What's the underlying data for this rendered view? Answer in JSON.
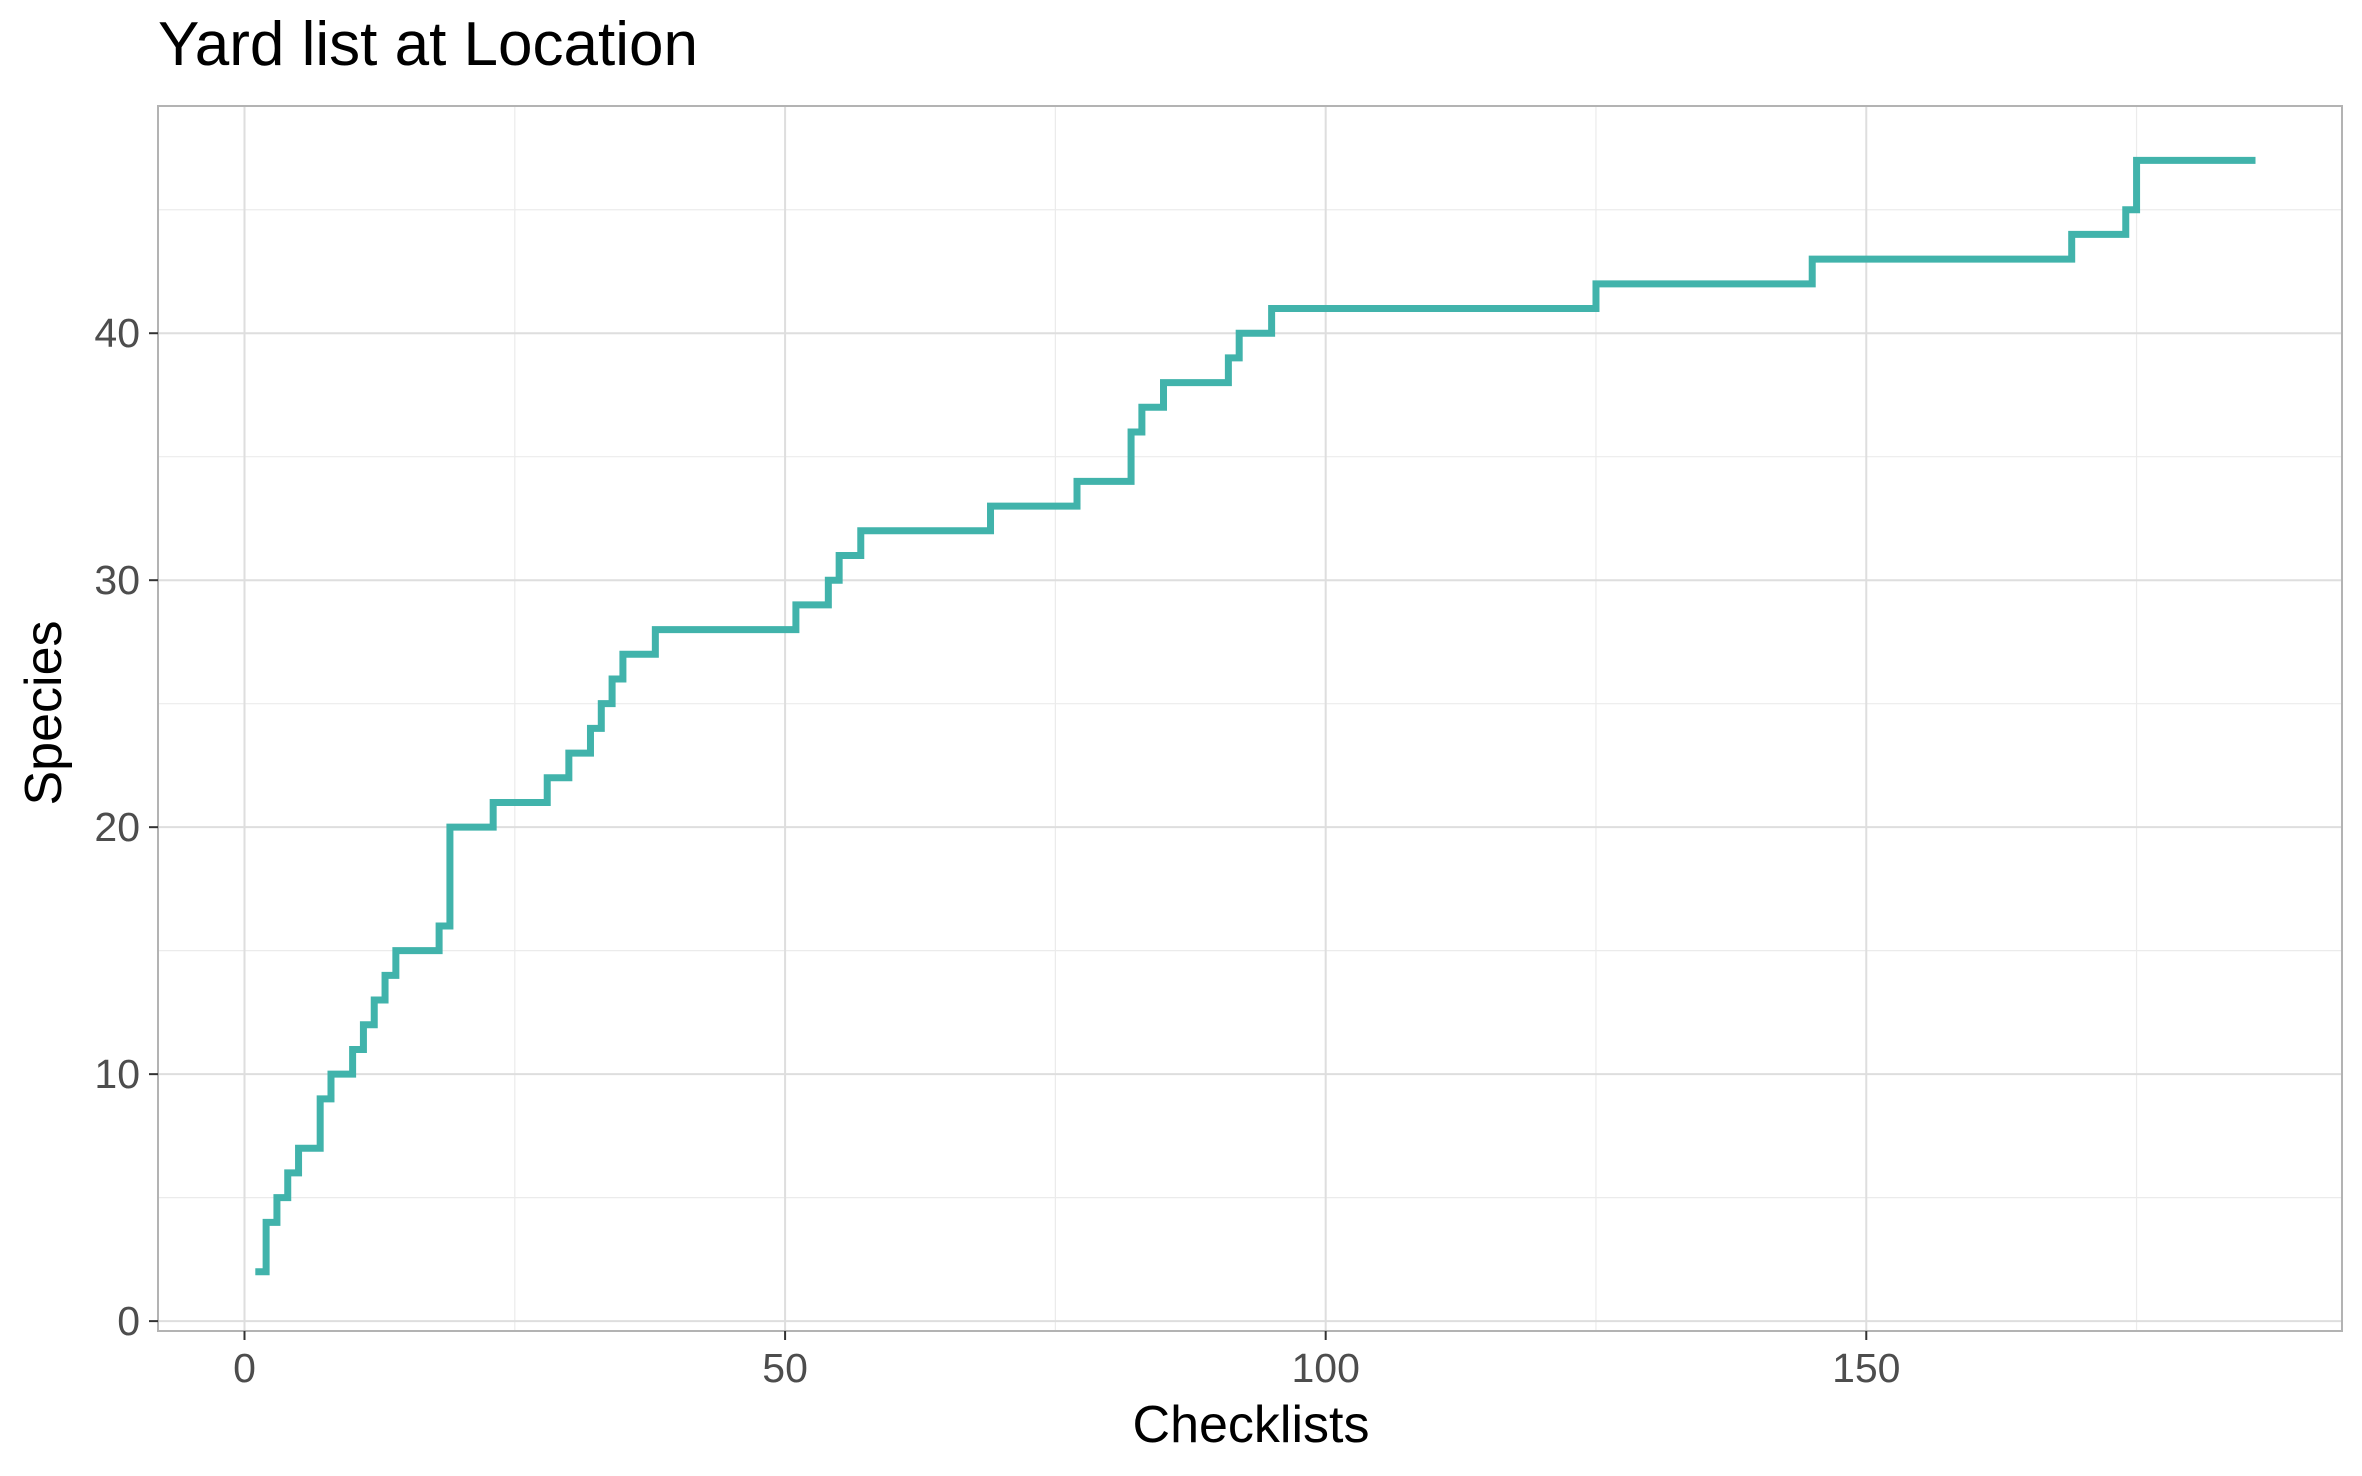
{
  "chart_data": {
    "type": "line",
    "step": true,
    "title": "Yard list at Location",
    "xlabel": "Checklists",
    "ylabel": "Species",
    "xlim": [
      -8,
      194
    ],
    "ylim": [
      -0.4,
      49.2
    ],
    "x_ticks": [
      0,
      50,
      100,
      150
    ],
    "x_tick_labels": [
      "0",
      "50",
      "100",
      "150"
    ],
    "y_ticks": [
      0,
      10,
      20,
      30,
      40
    ],
    "y_tick_labels": [
      "0",
      "10",
      "20",
      "30",
      "40"
    ],
    "grid": true,
    "legend": "none",
    "series": [
      {
        "color": "#41B3AB",
        "x": [
          1,
          2,
          3,
          4,
          5,
          7,
          8,
          10,
          11,
          12,
          13,
          14,
          18,
          19,
          23,
          28,
          30,
          32,
          33,
          34,
          35,
          38,
          51,
          54,
          55,
          57,
          69,
          77,
          82,
          83,
          85,
          91,
          92,
          95,
          125,
          145,
          169,
          174,
          175,
          186
        ],
        "y": [
          2,
          4,
          5,
          6,
          7,
          9,
          10,
          11,
          12,
          13,
          14,
          15,
          16,
          20,
          21,
          22,
          23,
          24,
          25,
          26,
          27,
          28,
          29,
          30,
          31,
          32,
          33,
          34,
          36,
          37,
          38,
          39,
          40,
          41,
          42,
          43,
          44,
          45,
          47,
          47
        ]
      }
    ]
  }
}
